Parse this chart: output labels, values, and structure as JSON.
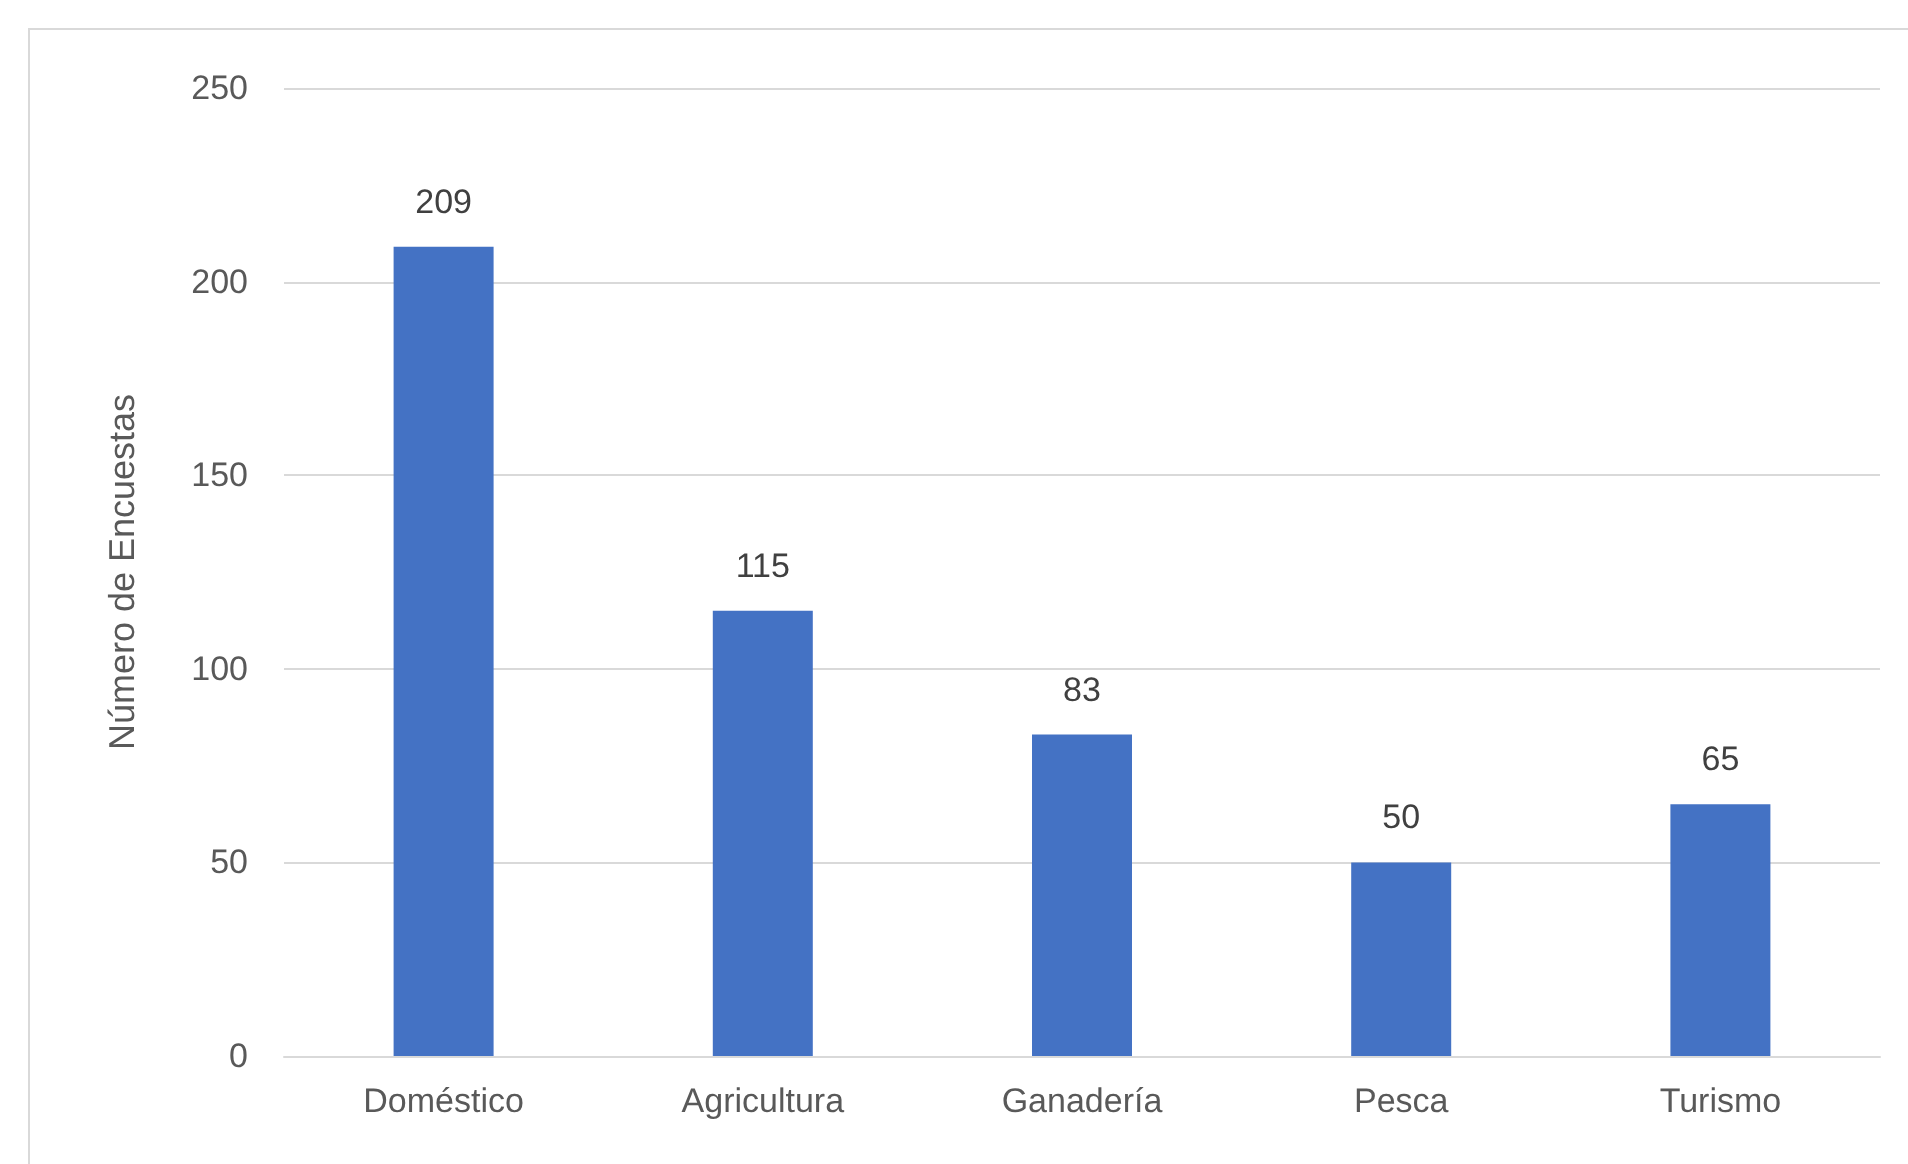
{
  "chart_data": {
    "type": "bar",
    "ylabel": "Número de Encuestas",
    "categories": [
      "Doméstico",
      "Agricultura",
      "Ganadería",
      "Pesca",
      "Turismo"
    ],
    "values": [
      209,
      115,
      83,
      50,
      65
    ],
    "color": "#4472c4",
    "ylim": [
      0,
      250
    ],
    "yticks": [
      0,
      50,
      100,
      150,
      200,
      250
    ],
    "grid": "y",
    "data_labels": true
  }
}
